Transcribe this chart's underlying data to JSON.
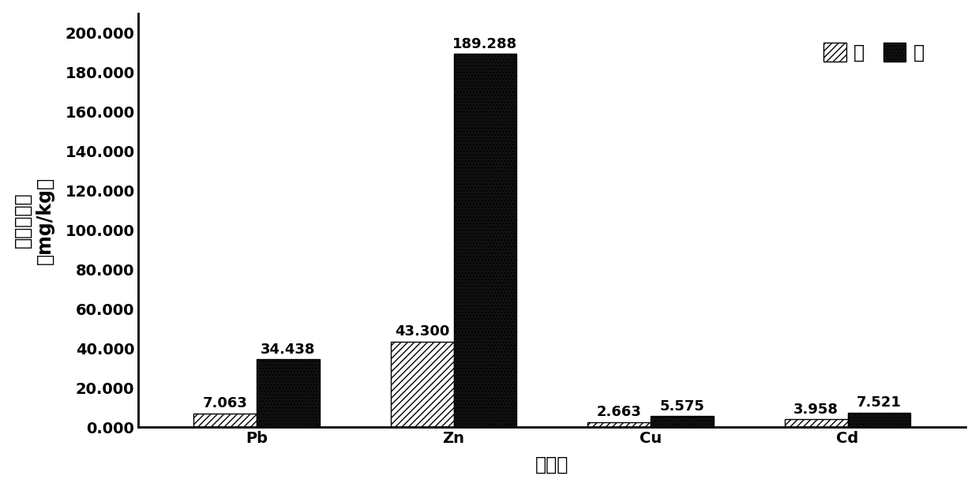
{
  "categories": [
    "Pb",
    "Zn",
    "Cu",
    "Cd"
  ],
  "stem_values": [
    7.063,
    43.3,
    2.663,
    3.958
  ],
  "leaf_values": [
    34.438,
    189.288,
    5.575,
    7.521
  ],
  "xlabel": "重金属",
  "ylabel_line1": "重金属含量",
  "ylabel_line2": "（mg/kg）",
  "ylim": [
    0,
    210
  ],
  "yticks": [
    0,
    20.0,
    40.0,
    60.0,
    80.0,
    100.0,
    120.0,
    140.0,
    160.0,
    180.0,
    200.0
  ],
  "legend_stem": "茎",
  "legend_leaf": "叶",
  "bar_width": 0.32,
  "stem_hatch": "////",
  "leaf_hatch": "....",
  "stem_facecolor": "#ffffff",
  "leaf_facecolor": "#111111",
  "stem_edgecolor": "#000000",
  "leaf_edgecolor": "#000000",
  "annotation_fontsize": 13,
  "label_fontsize": 17,
  "tick_fontsize": 14,
  "legend_fontsize": 17,
  "background_color": "#ffffff"
}
